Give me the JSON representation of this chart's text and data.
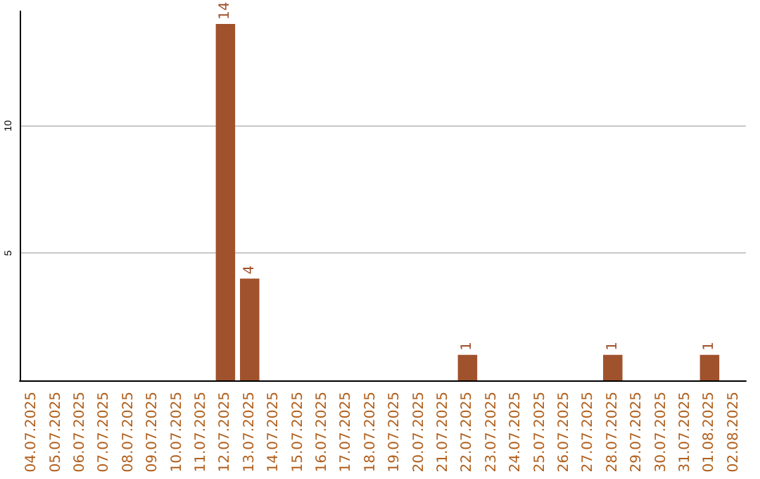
{
  "chart_data": {
    "type": "bar",
    "categories": [
      "04.07.2025",
      "05.07.2025",
      "06.07.2025",
      "07.07.2025",
      "08.07.2025",
      "09.07.2025",
      "10.07.2025",
      "11.07.2025",
      "12.07.2025",
      "13.07.2025",
      "14.07.2025",
      "15.07.2025",
      "16.07.2025",
      "17.07.2025",
      "18.07.2025",
      "19.07.2025",
      "20.07.2025",
      "21.07.2025",
      "22.07.2025",
      "23.07.2025",
      "24.07.2025",
      "25.07.2025",
      "26.07.2025",
      "27.07.2025",
      "28.07.2025",
      "29.07.2025",
      "30.07.2025",
      "31.07.2025",
      "01.08.2025",
      "02.08.2025"
    ],
    "values": [
      0,
      0,
      0,
      0,
      0,
      0,
      0,
      0,
      14,
      4,
      0,
      0,
      0,
      0,
      0,
      0,
      0,
      0,
      1,
      0,
      0,
      0,
      0,
      0,
      1,
      0,
      0,
      0,
      1,
      0
    ],
    "value_labels": [
      null,
      null,
      null,
      null,
      null,
      null,
      null,
      null,
      "14",
      "4",
      null,
      null,
      null,
      null,
      null,
      null,
      null,
      null,
      "1",
      null,
      null,
      null,
      null,
      null,
      "1",
      null,
      null,
      null,
      "1",
      null
    ],
    "color": "#a0522d",
    "ylim": [
      0,
      14.5
    ],
    "yticks": [
      5,
      10
    ],
    "grid": "y"
  }
}
